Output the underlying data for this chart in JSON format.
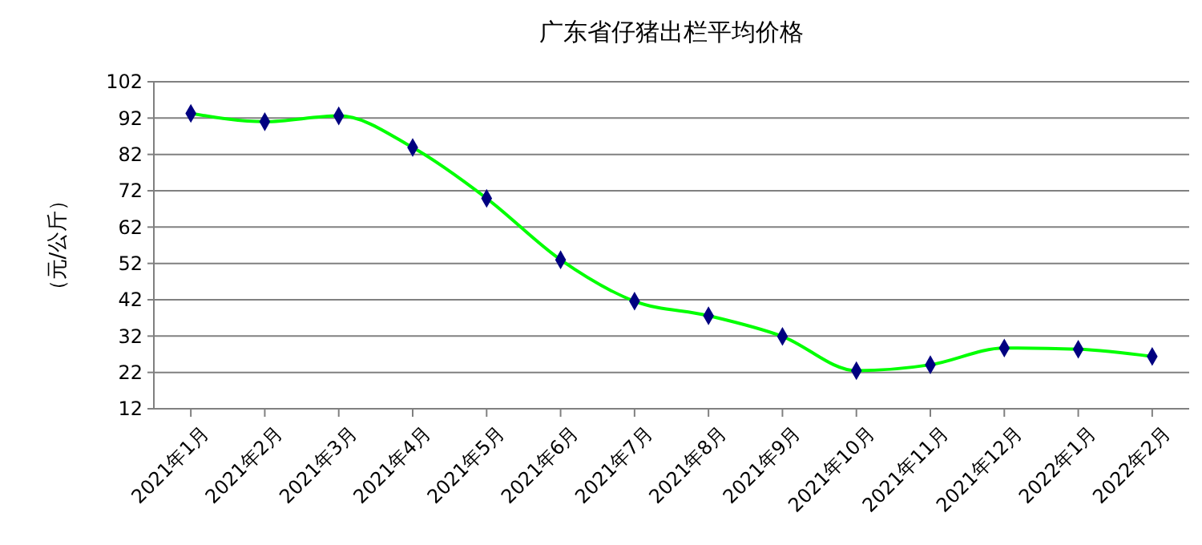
{
  "chart_data": {
    "type": "line",
    "title": "广东省仔猪出栏平均价格",
    "ylabel": "（元/公斤）",
    "categories": [
      "2021年1月",
      "2021年2月",
      "2021年3月",
      "2021年4月",
      "2021年5月",
      "2021年6月",
      "2021年7月",
      "2021年8月",
      "2021年9月",
      "2021年10月",
      "2021年11月",
      "2021年12月",
      "2022年1月",
      "2022年2月"
    ],
    "series": [
      {
        "color": "#00ff00",
        "values": [
          93.3,
          91.0,
          92.6,
          83.9,
          69.9,
          53.0,
          41.6,
          37.6,
          31.9,
          22.5,
          24.1,
          28.7,
          28.4,
          26.4
        ]
      }
    ],
    "ylim": [
      12,
      102
    ],
    "yticks": [
      12,
      22,
      32,
      42,
      52,
      62,
      72,
      82,
      92,
      102
    ],
    "grid": "y",
    "marker": "diamond"
  }
}
